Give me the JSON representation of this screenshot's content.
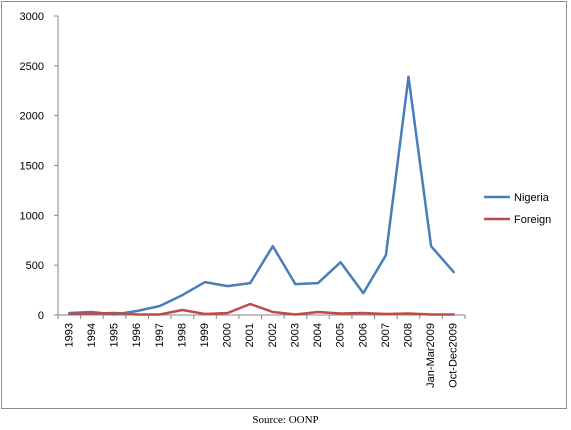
{
  "chart_data": {
    "type": "line",
    "categories": [
      "1993",
      "1994",
      "1995",
      "1996",
      "1997",
      "1998",
      "1999",
      "2000",
      "2001",
      "2002",
      "2003",
      "2004",
      "2005",
      "2006",
      "2007",
      "2008",
      "Jan-Mar2009",
      "Oct-Dec2009"
    ],
    "series": [
      {
        "name": "Nigeria",
        "color": "#4a7ebb",
        "values": [
          20,
          30,
          5,
          40,
          90,
          200,
          330,
          290,
          320,
          690,
          310,
          320,
          530,
          220,
          600,
          2390,
          690,
          430
        ]
      },
      {
        "name": "Foreign",
        "color": "#be4b48",
        "values": [
          10,
          15,
          20,
          5,
          5,
          50,
          10,
          20,
          110,
          30,
          5,
          30,
          15,
          20,
          10,
          15,
          5,
          5
        ]
      }
    ],
    "ylim": [
      0,
      3000
    ],
    "yticks": [
      0,
      500,
      1000,
      1500,
      2000,
      2500,
      3000
    ],
    "grid": false,
    "legend_position": "right"
  },
  "source_note": "Source: OONP"
}
